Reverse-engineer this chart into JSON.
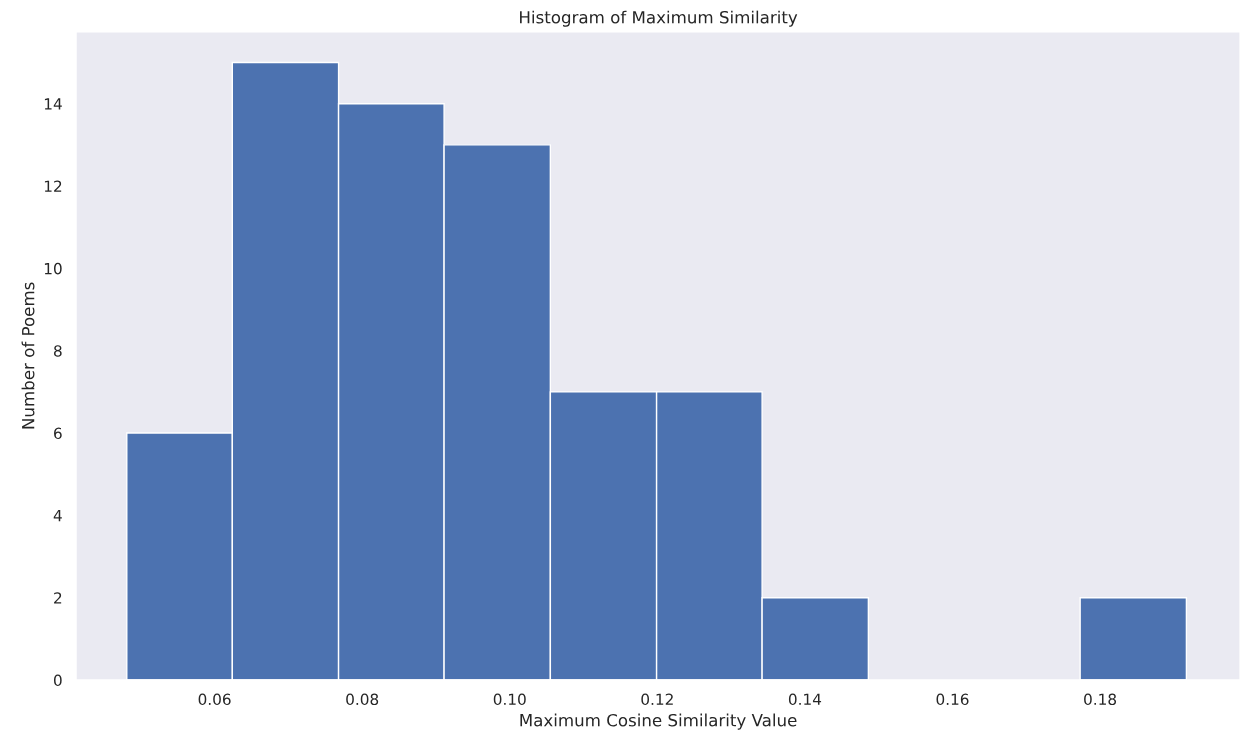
{
  "chart_data": {
    "type": "histogram",
    "title": "Histogram of Maximum Similarity",
    "xlabel": "Maximum Cosine Similarity Value",
    "ylabel": "Number of Poems",
    "bins": [
      0.0481,
      0.0624,
      0.0768,
      0.0911,
      0.1055,
      0.1199,
      0.1342,
      0.1486,
      0.1773,
      0.1917
    ],
    "values": [
      6,
      15,
      14,
      13,
      7,
      7,
      2,
      0,
      2
    ],
    "color": "#4c72b0",
    "xlim": [
      0.0412,
      0.199
    ],
    "xticks": [
      {
        "value": 0.06,
        "label": "0.06"
      },
      {
        "value": 0.08,
        "label": "0.08"
      },
      {
        "value": 0.1,
        "label": "0.10"
      },
      {
        "value": 0.12,
        "label": "0.12"
      },
      {
        "value": 0.14,
        "label": "0.14"
      },
      {
        "value": 0.16,
        "label": "0.16"
      },
      {
        "value": 0.18,
        "label": "0.18"
      }
    ],
    "ylim": [
      0,
      15.75
    ],
    "yticks": [
      0,
      2,
      4,
      6,
      8,
      10,
      12,
      14
    ],
    "grid": false
  }
}
